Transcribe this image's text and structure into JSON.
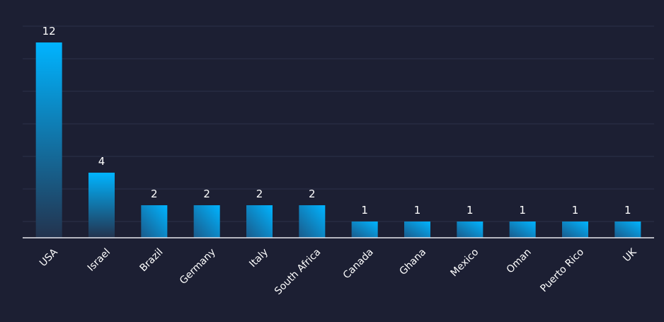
{
  "chart_data": {
    "type": "bar",
    "categories": [
      "USA",
      "Israel",
      "Brazil",
      "Germany",
      "Italy",
      "South Africa",
      "Canada",
      "Ghana",
      "Mexico",
      "Oman",
      "Puerto Rico",
      "UK"
    ],
    "values": [
      12,
      4,
      2,
      2,
      2,
      2,
      1,
      1,
      1,
      1,
      1,
      1
    ],
    "title": "",
    "xlabel": "",
    "ylabel": "",
    "ylim": [
      0,
      14
    ],
    "grid": true,
    "legend": "none",
    "colors": {
      "background": "#1c1f33",
      "grid": "#2c3048",
      "axis": "#e8e8f0",
      "bar_top": "#00b4ff",
      "bar_bottom": "#23334e",
      "text": "#ffffff"
    }
  }
}
